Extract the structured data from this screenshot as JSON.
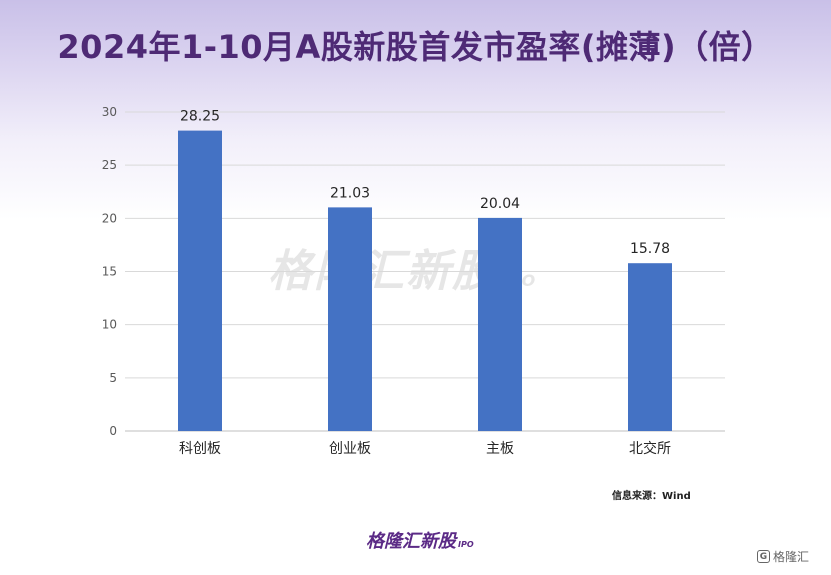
{
  "title": "2024年1-10月A股新股首发市盈率(摊薄)（倍）",
  "watermark": {
    "main": "格隆汇新股",
    "sub": "IPO"
  },
  "source": "信息来源：Wind",
  "brand": {
    "main": "格隆汇新股",
    "sub": "IPO"
  },
  "corner_logo": {
    "icon": "G",
    "text": "格隆汇"
  },
  "colors": {
    "bar": "#4472c4",
    "title": "#4e2a75",
    "brand": "#5b2a86",
    "grid": "#d9d9d9"
  },
  "chart_data": {
    "type": "bar",
    "title": "2024年1-10月A股新股首发市盈率(摊薄)（倍）",
    "categories": [
      "科创板",
      "创业板",
      "主板",
      "北交所"
    ],
    "values": [
      28.25,
      21.03,
      20.04,
      15.78
    ],
    "value_labels": [
      "28.25",
      "21.03",
      "20.04",
      "15.78"
    ],
    "xlabel": "",
    "ylabel": "",
    "ylim": [
      0,
      30
    ],
    "yticks": [
      0,
      5,
      10,
      15,
      20,
      25,
      30
    ],
    "grid": true,
    "legend": "none"
  }
}
